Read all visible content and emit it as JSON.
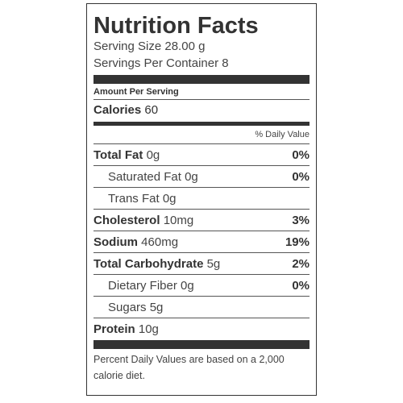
{
  "title": "Nutrition Facts",
  "serving_size": "Serving Size 28.00 g",
  "servings_per_container": "Servings Per Container 8",
  "amount_per_serving": "Amount Per Serving",
  "calories": {
    "label": "Calories",
    "value": "60"
  },
  "daily_value_header": "% Daily Value",
  "nutrients": [
    {
      "name": "Total Fat",
      "amount": "0g",
      "percent": "0%"
    },
    {
      "name": "Saturated Fat",
      "amount": "0g",
      "percent": "0%"
    },
    {
      "name": "Trans Fat",
      "amount": "0g",
      "percent": ""
    },
    {
      "name": "Cholesterol",
      "amount": "10mg",
      "percent": "3%"
    },
    {
      "name": "Sodium",
      "amount": "460mg",
      "percent": "19%"
    },
    {
      "name": "Total Carbohydrate",
      "amount": "5g",
      "percent": "2%"
    },
    {
      "name": "Dietary Fiber",
      "amount": "0g",
      "percent": "0%"
    },
    {
      "name": "Sugars",
      "amount": "5g",
      "percent": ""
    },
    {
      "name": "Protein",
      "amount": "10g",
      "percent": ""
    }
  ],
  "footnote": "Percent Daily Values are based on a 2,000 calorie diet."
}
